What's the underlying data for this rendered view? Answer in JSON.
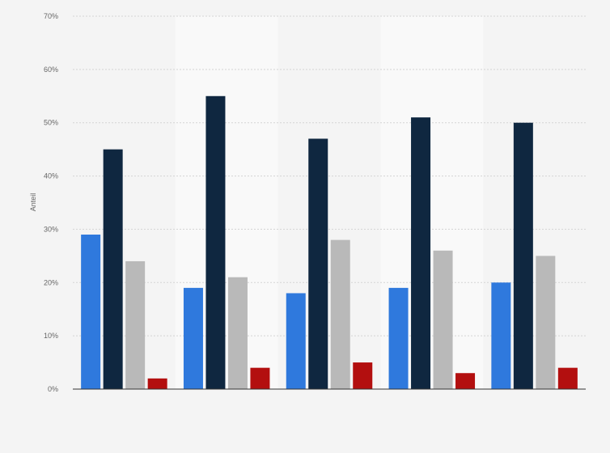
{
  "chart_data": {
    "type": "bar",
    "title": "",
    "xlabel": "",
    "ylabel": "Anteil",
    "ylim": [
      0,
      70
    ],
    "y_ticks": [
      0,
      10,
      20,
      30,
      40,
      50,
      60,
      70
    ],
    "y_tick_suffix": "%",
    "grid": true,
    "categories": [
      "",
      "",
      "",
      "",
      ""
    ],
    "series": [
      {
        "color": "#2f79dd",
        "values": [
          29,
          19,
          18,
          19,
          20
        ]
      },
      {
        "color": "#0f2740",
        "values": [
          45,
          55,
          47,
          51,
          50
        ]
      },
      {
        "color": "#b9b9b9",
        "values": [
          24,
          21,
          28,
          26,
          25
        ]
      },
      {
        "color": "#b30f0f",
        "values": [
          2,
          4,
          5,
          3,
          4
        ]
      }
    ],
    "colors": {
      "background": "#f4f4f4",
      "band": "#f9f9f9",
      "grid": "#d4d4d4",
      "axis": "#333333"
    }
  }
}
